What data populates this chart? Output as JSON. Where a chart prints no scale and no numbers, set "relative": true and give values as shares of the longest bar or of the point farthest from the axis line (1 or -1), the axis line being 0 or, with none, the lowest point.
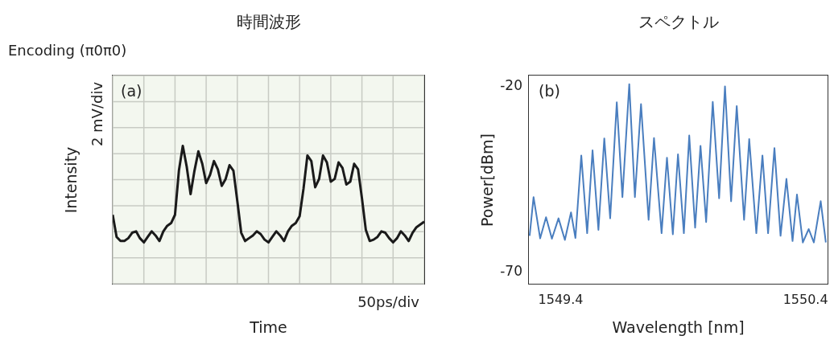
{
  "chart_data": [
    {
      "type": "line",
      "title": "時間波形",
      "subtitle": "Encoding (π0π0)",
      "xlabel": "Time",
      "ylabel": "Intensity",
      "annotations": [
        "2 mV/div",
        "50ps/div",
        "(a)"
      ],
      "categories": [
        null,
        null,
        null,
        null,
        null,
        null,
        null,
        null,
        null,
        null,
        null,
        null,
        null,
        null,
        null,
        null,
        null,
        null,
        null,
        null,
        null,
        null,
        null,
        null,
        null,
        null,
        null,
        null,
        null,
        null,
        null,
        null,
        null,
        null,
        null,
        null,
        null,
        null,
        null,
        null,
        null,
        null,
        null,
        null,
        null,
        null,
        null,
        null,
        null,
        null,
        null,
        null,
        null,
        null,
        null,
        null,
        null,
        null,
        null,
        null,
        null,
        null,
        null,
        null,
        null,
        null,
        null,
        null,
        null,
        null,
        null,
        null,
        null,
        null,
        null,
        null,
        null,
        null,
        null,
        null,
        null
      ],
      "series": [
        {
          "color": "#1a1a1a",
          "values": [
            0.5,
            0.34,
            0.31,
            0.31,
            0.33,
            0.37,
            0.38,
            0.33,
            0.3,
            0.34,
            0.38,
            0.35,
            0.31,
            0.38,
            0.42,
            0.44,
            0.5,
            0.82,
            1,
            0.85,
            0.65,
            0.82,
            0.96,
            0.87,
            0.73,
            0.79,
            0.89,
            0.83,
            0.71,
            0.76,
            0.86,
            0.82,
            0.6,
            0.37,
            0.31,
            0.33,
            0.35,
            0.38,
            0.36,
            0.32,
            0.3,
            0.34,
            0.38,
            0.35,
            0.31,
            0.38,
            0.42,
            0.44,
            0.49,
            0.69,
            0.93,
            0.89,
            0.7,
            0.76,
            0.93,
            0.88,
            0.74,
            0.76,
            0.88,
            0.84,
            0.72,
            0.74,
            0.87,
            0.83,
            0.62,
            0.39,
            0.31,
            0.32,
            0.34,
            0.38,
            0.37,
            0.33,
            0.3,
            0.33,
            0.38,
            0.35,
            0.31,
            0.37,
            0.41,
            0.43,
            0.45
          ]
        }
      ],
      "relative": true,
      "grid": true
    },
    {
      "type": "line",
      "title": "スペクトル",
      "xlabel": "Wavelength [nm]",
      "ylabel": "Power[dBm]",
      "annotations": [
        "(b)"
      ],
      "series": [
        {
          "color": "#4a7ebf",
          "x": [
            1549.273,
            1549.289,
            1549.316,
            1549.34,
            1549.364,
            1549.391,
            1549.417,
            1549.442,
            1549.46,
            1549.484,
            1549.508,
            1549.53,
            1549.554,
            1549.578,
            1549.602,
            1549.629,
            1549.652,
            1549.68,
            1549.703,
            1549.728,
            1549.759,
            1549.781,
            1549.812,
            1549.834,
            1549.858,
            1549.879,
            1549.903,
            1549.925,
            1549.949,
            1549.971,
            1549.994,
            1550.021,
            1550.047,
            1550.071,
            1550.096,
            1550.119,
            1550.149,
            1550.17,
            1550.199,
            1550.224,
            1550.247,
            1550.273,
            1550.298,
            1550.322,
            1550.347,
            1550.365,
            1550.389,
            1550.413,
            1550.434,
            1550.462,
            1550.483
          ],
          "values": [
            -60.6,
            -50.2,
            -61.3,
            -55.6,
            -61.4,
            -55.9,
            -61.7,
            -54.3,
            -61.2,
            -39.0,
            -59.9,
            -37.6,
            -59.0,
            -34.4,
            -55.9,
            -24.7,
            -50.2,
            -19.8,
            -50.2,
            -25.2,
            -56.3,
            -34.3,
            -59.9,
            -39.6,
            -60.2,
            -38.7,
            -59.9,
            -33.6,
            -58.4,
            -36.4,
            -56.9,
            -24.6,
            -50.5,
            -20.4,
            -51.3,
            -25.7,
            -56.3,
            -34.6,
            -59.9,
            -39.0,
            -59.9,
            -37.0,
            -60.6,
            -45.3,
            -62.0,
            -49.5,
            -62.4,
            -58.8,
            -62.4,
            -51.3,
            -62.4
          ]
        }
      ],
      "xlim": [
        1549.27,
        1550.49
      ],
      "xticks": [
        1549.4,
        1550.4
      ],
      "ylim": [
        -73.5,
        -17.5
      ],
      "yticks": [
        -20,
        -70
      ]
    }
  ]
}
